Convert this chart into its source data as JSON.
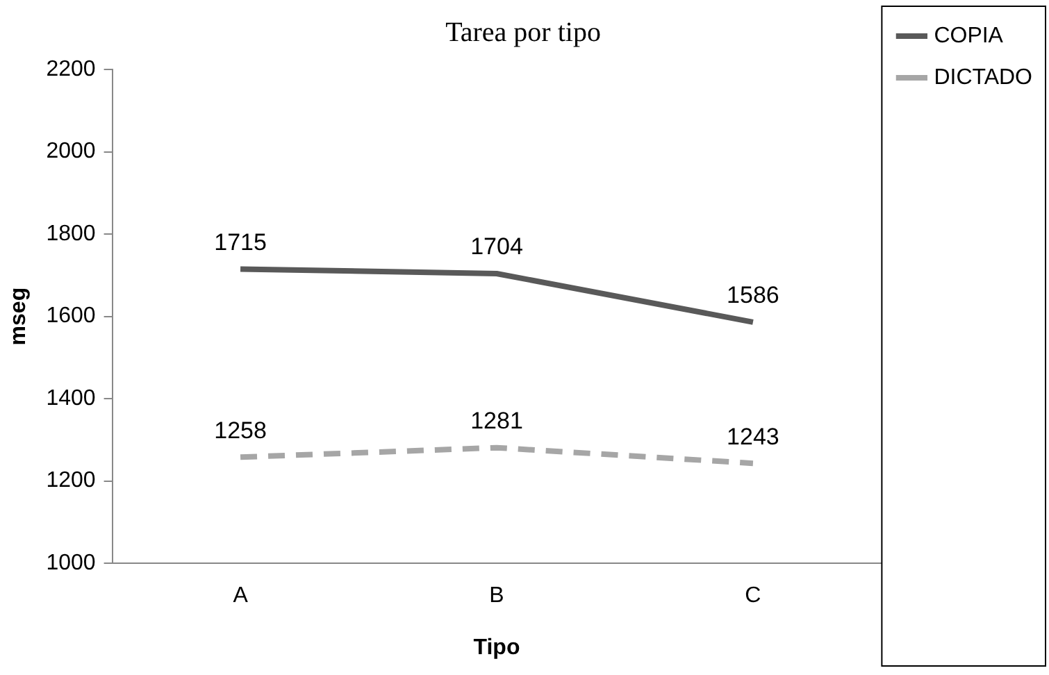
{
  "chart_data": {
    "type": "line",
    "title": "Tarea por tipo",
    "xlabel": "Tipo",
    "ylabel": "mseg",
    "categories": [
      "A",
      "B",
      "C"
    ],
    "series": [
      {
        "name": "COPIA",
        "color": "#595959",
        "values": [
          1715,
          1704,
          1586
        ],
        "line_style": "solid"
      },
      {
        "name": "DICTADO",
        "color": "#a6a6a6",
        "values": [
          1258,
          1281,
          1243
        ],
        "line_style": "dashed"
      }
    ],
    "ylim": [
      1000,
      2200
    ],
    "yticks": [
      1000,
      1200,
      1400,
      1600,
      1800,
      2000,
      2200
    ],
    "grid": false,
    "legend": "top right",
    "marker": "none",
    "data_labels": true
  }
}
